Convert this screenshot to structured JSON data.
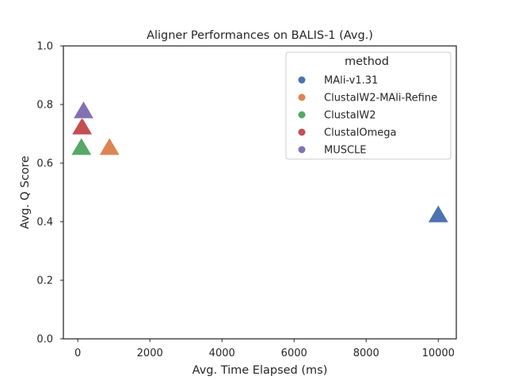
{
  "chart_data": {
    "type": "scatter",
    "title": "Aligner Performances on BALIS-1 (Avg.)",
    "xlabel": "Avg. Time Elapsed (ms)",
    "ylabel": "Avg. Q Score",
    "xlim": [
      -400,
      10500
    ],
    "ylim": [
      0.0,
      1.0
    ],
    "xticks": [
      0,
      2000,
      4000,
      6000,
      8000,
      10000
    ],
    "yticks": [
      0.0,
      0.2,
      0.4,
      0.6,
      0.8,
      1.0
    ],
    "xtick_labels": [
      "0",
      "2000",
      "4000",
      "6000",
      "8000",
      "10000"
    ],
    "ytick_labels": [
      "0.0",
      "0.2",
      "0.4",
      "0.6",
      "0.8",
      "1.0"
    ],
    "grid": false,
    "marker": "triangle",
    "legend": {
      "title": "method",
      "placement": "top-right"
    },
    "series": [
      {
        "name": "MAli-v1.31",
        "color": "#4c72b0",
        "points": [
          {
            "x": 10000,
            "y": 0.42
          }
        ]
      },
      {
        "name": "ClustalW2-MAli-Refine",
        "color": "#dd8452",
        "points": [
          {
            "x": 880,
            "y": 0.65
          }
        ]
      },
      {
        "name": "ClustalW2",
        "color": "#55a868",
        "points": [
          {
            "x": 100,
            "y": 0.65
          }
        ]
      },
      {
        "name": "ClustalOmega",
        "color": "#c44e52",
        "points": [
          {
            "x": 120,
            "y": 0.72
          }
        ]
      },
      {
        "name": "MUSCLE",
        "color": "#8172b3",
        "points": [
          {
            "x": 160,
            "y": 0.775
          }
        ]
      }
    ]
  }
}
